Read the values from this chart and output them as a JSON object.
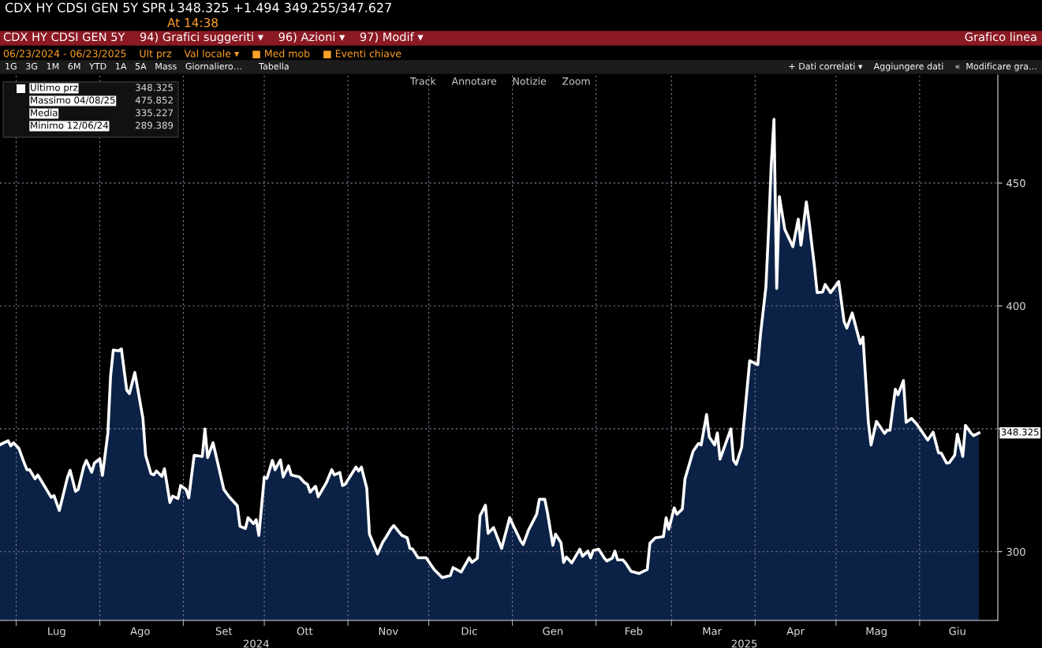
{
  "chart_data": {
    "type": "area",
    "title": "CDX HY CDSI GEN 5Y SPR↓348.325 +1.494 349.255/347.627",
    "subtitle": "At 14:38",
    "annotations": [
      "CDX HY CDSI GEN 5Y    94) Grafici suggeriti ▾    96) Azioni ▾    97) Modif ▾",
      "Grafico linea",
      "06/23/2024 - 06/23/2025    Ult prz    Val locale ▾    ■ Med mob    ■ Eventi chiave",
      "1G   3G   1M   6M   YTD   1A   5A   Mass   Giornaliero…      Tabella",
      "+ Dati correlati ▾    Aggiungere dati    «  Modificare gra…",
      "Track     Annotare     Notizie     Zoom",
      "Ultimo prz",
      "348.325",
      "Massimo 04/08/25",
      "475.852",
      "Media",
      "335.227",
      "Minimo 12/06/24",
      "289.389",
      {
        "text": "348.325",
        "x": "2025-06-23",
        "y": 348.325
      }
    ],
    "series": [
      {
        "color": "#ffffff",
        "x": [
          "2024-06-25",
          "2024-06-28",
          "2024-06-29",
          "2024-06-30",
          "2024-07-02",
          "2024-07-04",
          "2024-07-05",
          "2024-07-06",
          "2024-07-08",
          "2024-07-09",
          "2024-07-14",
          "2024-07-15",
          "2024-07-17",
          "2024-07-20",
          "2024-07-21",
          "2024-07-23",
          "2024-07-24",
          "2024-07-26",
          "2024-07-27",
          "2024-07-29",
          "2024-07-30",
          "2024-08-01",
          "2024-08-02",
          "2024-08-04",
          "2024-08-05",
          "2024-08-06",
          "2024-08-08",
          "2024-08-09",
          "2024-08-11",
          "2024-08-12",
          "2024-08-14",
          "2024-08-17",
          "2024-08-18",
          "2024-08-20",
          "2024-08-21",
          "2024-08-22",
          "2024-08-24",
          "2024-08-25",
          "2024-08-27",
          "2024-08-28",
          "2024-08-30",
          "2024-08-31",
          "2024-09-02",
          "2024-09-03",
          "2024-09-05",
          "2024-09-08",
          "2024-09-09",
          "2024-09-10",
          "2024-09-12",
          "2024-09-16",
          "2024-09-18",
          "2024-09-21",
          "2024-09-22",
          "2024-09-24",
          "2024-09-25",
          "2024-09-27",
          "2024-09-28",
          "2024-09-29",
          "2024-10-01",
          "2024-10-02",
          "2024-10-04",
          "2024-10-05",
          "2024-10-07",
          "2024-10-08",
          "2024-10-10",
          "2024-10-11",
          "2024-10-14",
          "2024-10-16",
          "2024-10-17",
          "2024-10-18",
          "2024-10-20",
          "2024-10-21",
          "2024-10-24",
          "2024-10-26",
          "2024-10-27",
          "2024-10-29",
          "2024-10-30",
          "2024-10-31",
          "2024-11-04",
          "2024-11-05",
          "2024-11-06",
          "2024-11-08",
          "2024-11-09",
          "2024-11-12",
          "2024-11-14",
          "2024-11-15",
          "2024-11-17",
          "2024-11-18",
          "2024-11-21",
          "2024-11-23",
          "2024-11-24",
          "2024-11-25",
          "2024-11-27",
          "2024-11-30",
          "2024-12-03",
          "2024-12-06",
          "2024-12-09",
          "2024-12-10",
          "2024-12-13",
          "2024-12-16",
          "2024-12-17",
          "2024-12-19",
          "2024-12-20",
          "2024-12-22",
          "2024-12-23",
          "2024-12-25",
          "2024-12-28",
          "2024-12-31",
          "2025-01-01",
          "2025-01-04",
          "2025-01-05",
          "2025-01-07",
          "2025-01-10",
          "2025-01-11",
          "2025-01-13",
          "2025-01-14",
          "2025-01-16",
          "2025-01-17",
          "2025-01-19",
          "2025-01-20",
          "2025-01-21",
          "2025-01-23",
          "2025-01-26",
          "2025-01-27",
          "2025-01-29",
          "2025-01-30",
          "2025-01-31",
          "2025-02-02",
          "2025-02-04",
          "2025-02-05",
          "2025-02-07",
          "2025-02-08",
          "2025-02-09",
          "2025-02-11",
          "2025-02-12",
          "2025-02-14",
          "2025-02-17",
          "2025-02-20",
          "2025-02-21",
          "2025-02-23",
          "2025-02-26",
          "2025-02-27",
          "2025-02-28",
          "2025-03-02",
          "2025-03-03",
          "2025-03-05",
          "2025-03-06",
          "2025-03-09",
          "2025-03-11",
          "2025-03-12",
          "2025-03-14",
          "2025-03-15",
          "2025-03-17",
          "2025-03-18",
          "2025-03-19",
          "2025-03-23",
          "2025-03-24",
          "2025-03-25",
          "2025-03-27",
          "2025-03-30",
          "2025-04-02",
          "2025-04-03",
          "2025-04-05",
          "2025-04-06",
          "2025-04-07",
          "2025-04-08",
          "2025-04-09",
          "2025-04-10",
          "2025-04-12",
          "2025-04-15",
          "2025-04-17",
          "2025-04-18",
          "2025-04-20",
          "2025-04-21",
          "2025-04-23",
          "2025-04-24",
          "2025-04-26",
          "2025-04-27",
          "2025-04-29",
          "2025-05-02",
          "2025-05-04",
          "2025-05-05",
          "2025-05-07",
          "2025-05-10",
          "2025-05-11",
          "2025-05-13",
          "2025-05-14",
          "2025-05-16",
          "2025-05-19",
          "2025-05-20",
          "2025-05-21",
          "2025-05-23",
          "2025-05-24",
          "2025-05-26",
          "2025-05-27",
          "2025-05-29",
          "2025-05-31",
          "2025-06-04",
          "2025-06-06",
          "2025-06-08",
          "2025-06-09",
          "2025-06-11",
          "2025-06-12",
          "2025-06-14",
          "2025-06-15",
          "2025-06-17",
          "2025-06-18",
          "2025-06-20",
          "2025-06-21",
          "2025-06-23"
        ],
        "values": [
          343.5,
          345.1,
          343.0,
          344.3,
          342.0,
          336.0,
          333.3,
          333.3,
          329.6,
          331.2,
          322.1,
          322.8,
          316.7,
          330.1,
          333.1,
          324.5,
          325.3,
          334.4,
          337.1,
          332.3,
          336.0,
          337.8,
          331.0,
          348.3,
          371.3,
          382.0,
          381.7,
          382.5,
          365.7,
          364.3,
          372.9,
          354.2,
          339.2,
          331.7,
          331.2,
          332.8,
          330.6,
          333.7,
          320.0,
          322.6,
          321.6,
          326.9,
          325.3,
          321.9,
          339.2,
          338.7,
          349.9,
          338.3,
          344.3,
          325.3,
          322.3,
          318.7,
          310.3,
          309.4,
          313.8,
          311.4,
          313.0,
          306.6,
          330.3,
          329.8,
          337.1,
          333.3,
          337.3,
          330.4,
          334.9,
          331.2,
          330.4,
          328.0,
          327.4,
          324.2,
          326.6,
          322.3,
          328.0,
          333.3,
          331.2,
          332.2,
          326.9,
          327.4,
          334.4,
          332.8,
          334.4,
          325.8,
          307.1,
          299.1,
          304.0,
          305.6,
          309.3,
          310.6,
          306.6,
          305.6,
          301.3,
          301.0,
          297.5,
          297.5,
          292.7,
          289.4,
          290.3,
          293.5,
          291.7,
          297.5,
          295.6,
          297.3,
          314.6,
          318.9,
          307.4,
          309.8,
          301.3,
          313.8,
          311.4,
          304.5,
          302.9,
          308.8,
          315.2,
          321.3,
          321.3,
          315.9,
          302.6,
          307.1,
          303.7,
          295.6,
          297.8,
          295.4,
          301.0,
          298.1,
          300.2,
          297.5,
          300.5,
          301.0,
          297.5,
          296.2,
          297.3,
          300.2,
          296.6,
          296.6,
          295.3,
          292.0,
          291.1,
          292.7,
          303.4,
          305.6,
          306.1,
          313.8,
          309.1,
          317.8,
          315.2,
          317.3,
          329.6,
          340.8,
          344.0,
          343.4,
          355.8,
          346.7,
          343.4,
          348.3,
          337.6,
          349.9,
          337.1,
          335.5,
          342.4,
          377.7,
          376.1,
          388.4,
          407.6,
          431.1,
          457.8,
          475.9,
          407.1,
          444.5,
          431.1,
          424.1,
          435.3,
          424.7,
          442.3,
          434.3,
          416.1,
          405.4,
          405.6,
          408.7,
          405.4,
          409.9,
          393.6,
          391.0,
          397.1,
          384.6,
          387.3,
          352.6,
          343.4,
          353.0,
          348.1,
          349.4,
          349.4,
          366.1,
          363.8,
          369.6,
          352.6,
          354.2,
          351.8,
          345.4,
          348.6,
          340.2,
          340.1,
          336.0,
          336.2,
          339.2,
          347.8,
          338.7,
          351.4,
          348.3,
          347.2,
          348.3
        ]
      }
    ],
    "xlim": [
      "2024-06-25",
      "2025-06-30"
    ],
    "xticks": [
      {
        "value": "2024-07-01",
        "label": null
      },
      {
        "value": "2024-08-01",
        "label": null
      },
      {
        "value": "2024-09-01",
        "label": null
      },
      {
        "value": "2024-10-01",
        "label": null
      },
      {
        "value": "2024-11-01",
        "label": null
      },
      {
        "value": "2024-12-01",
        "label": null
      },
      {
        "value": "2025-01-01",
        "label": null
      },
      {
        "value": "2025-02-01",
        "label": null
      },
      {
        "value": "2025-03-01",
        "label": null
      },
      {
        "value": "2025-04-01",
        "label": null
      },
      {
        "value": "2025-05-01",
        "label": null
      },
      {
        "value": "2025-06-01",
        "label": null
      },
      {
        "value": "2024-07-16",
        "label": "Lug"
      },
      {
        "value": "2024-08-16",
        "label": "Ago"
      },
      {
        "value": "2024-09-16",
        "label": "Set"
      },
      {
        "value": "2024-10-16",
        "label": "Ott"
      },
      {
        "value": "2024-11-16",
        "label": "Nov"
      },
      {
        "value": "2024-12-16",
        "label": "Dic"
      },
      {
        "value": "2025-01-16",
        "label": "Gen"
      },
      {
        "value": "2025-02-15",
        "label": "Feb"
      },
      {
        "value": "2025-03-16",
        "label": "Mar"
      },
      {
        "value": "2025-04-16",
        "label": "Apr"
      },
      {
        "value": "2025-05-16",
        "label": "Mag"
      },
      {
        "value": "2025-06-15",
        "label": "Giu"
      }
    ],
    "x2lim": [
      "2024-06-25",
      "2025-06-30"
    ],
    "x2ticks": [
      {
        "value": "2024-09-28",
        "label": "2024"
      },
      {
        "value": "2025-03-28",
        "label": "2025"
      }
    ],
    "ylim": [
      272,
      494
    ],
    "yticks": [
      300,
      {
        "value": 350,
        "label": null
      },
      400,
      450
    ],
    "grid": true,
    "line_style": "solid",
    "marker": "none"
  }
}
